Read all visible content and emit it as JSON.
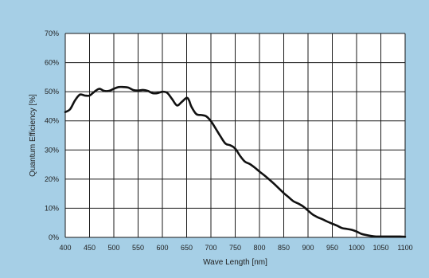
{
  "chart_data": {
    "type": "line",
    "title": "",
    "xlabel": "Wave Length [nm]",
    "ylabel": "Quantum Efficiency [%]",
    "xlim": [
      400,
      1100
    ],
    "ylim": [
      0,
      70
    ],
    "x_ticks": [
      "400",
      "450",
      "500",
      "550",
      "600",
      "650",
      "700",
      "750",
      "800",
      "850",
      "900",
      "950",
      "1000",
      "1050",
      "1100"
    ],
    "y_ticks": [
      "0%",
      "10%",
      "20%",
      "30%",
      "40%",
      "50%",
      "60%",
      "70%"
    ],
    "grid": true,
    "legend": "none",
    "colors": {
      "background": "#a6cfe6",
      "plot_area": "#ffffff",
      "grid": "#1a1a1a",
      "line": "#111111"
    },
    "series": [
      {
        "x": [
          400,
          410,
          420,
          430,
          440,
          450,
          460,
          470,
          480,
          490,
          500,
          510,
          520,
          530,
          540,
          550,
          560,
          570,
          580,
          590,
          600,
          610,
          620,
          630,
          640,
          650,
          655,
          660,
          670,
          680,
          690,
          700,
          710,
          720,
          730,
          740,
          750,
          760,
          770,
          780,
          790,
          800,
          810,
          820,
          830,
          840,
          850,
          860,
          870,
          880,
          890,
          900,
          910,
          920,
          930,
          940,
          950,
          960,
          970,
          980,
          990,
          1000,
          1010,
          1020,
          1030,
          1040,
          1050,
          1060,
          1070,
          1080,
          1090,
          1100
        ],
        "values": [
          43,
          44,
          47,
          49,
          48.7,
          48.7,
          50,
          51,
          50.3,
          50.3,
          51,
          51.6,
          51.6,
          51.4,
          50.6,
          50.4,
          50.6,
          50.3,
          49.5,
          49.5,
          50,
          49.6,
          47.5,
          45.3,
          46.5,
          47.9,
          47,
          44.8,
          42.3,
          42,
          41.6,
          39.9,
          37.3,
          34.6,
          32.2,
          31.6,
          30.5,
          28,
          26,
          25.2,
          24,
          22.6,
          21.3,
          19.9,
          18.4,
          16.8,
          15.2,
          13.8,
          12.4,
          11.6,
          10.6,
          9.2,
          7.8,
          6.9,
          6.2,
          5.4,
          4.7,
          4,
          3.2,
          2.9,
          2.6,
          2,
          1.2,
          0.8,
          0.5,
          0.3,
          0.3,
          0.3,
          0.3,
          0.3,
          0.3,
          0.2
        ]
      }
    ]
  }
}
